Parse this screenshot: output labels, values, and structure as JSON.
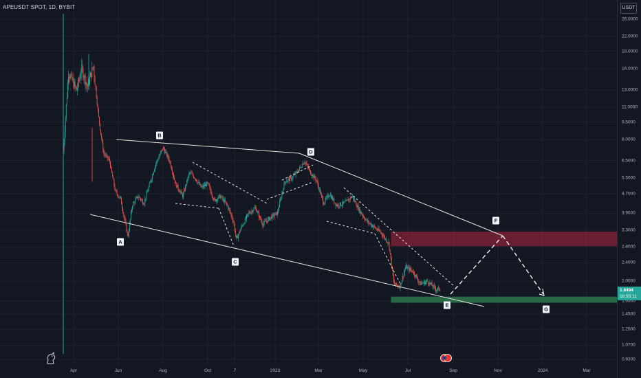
{
  "header": {
    "title": "APEUSDT SPOT, 1D, BYBIT"
  },
  "price_axis": {
    "currency": "USDT"
  },
  "last_price": {
    "value": "1.8494",
    "countdown": "16:55:11"
  },
  "colors": {
    "background": "#131722",
    "bull": "#26a69a",
    "bear": "#ef5350",
    "resistance_zone": "#b2243f",
    "support_zone": "#2e7d4f",
    "drawing": "#e6e6e6"
  },
  "chart_data": {
    "type": "candlestick",
    "title": "APEUSDT SPOT, 1D, BYBIT",
    "y_scale": "log",
    "ylim": [
      0.9,
      27
    ],
    "y_ticks": [
      "26.0000",
      "22.0000",
      "19.0000",
      "16.0000",
      "13.0000",
      "11.0000",
      "9.5000",
      "8.0000",
      "6.5000",
      "5.5000",
      "4.7000",
      "3.9000",
      "3.3000",
      "2.8000",
      "2.4000",
      "2.0000",
      "1.6500",
      "1.4500",
      "1.2500",
      "1.0700",
      "0.9300"
    ],
    "x_ticks": [
      "Apr",
      "Jun",
      "Aug",
      "Oct",
      "7",
      "2023",
      "Mar",
      "May",
      "Jul",
      "Sep",
      "Nov",
      "2024",
      "Mar"
    ],
    "x_range": [
      "2022-03-17",
      "2024-03-31"
    ],
    "price_path": [
      [
        "2022-03-17",
        6.5
      ],
      [
        "2022-03-25",
        15.5
      ],
      [
        "2022-04-05",
        13
      ],
      [
        "2022-04-12",
        16
      ],
      [
        "2022-04-20",
        13.5
      ],
      [
        "2022-04-28",
        16.5
      ],
      [
        "2022-05-05",
        10
      ],
      [
        "2022-05-12",
        7
      ],
      [
        "2022-05-20",
        6.5
      ],
      [
        "2022-05-28",
        4.8
      ],
      [
        "2022-06-04",
        4.5
      ],
      [
        "2022-06-14",
        3.1
      ],
      [
        "2022-06-20",
        4.2
      ],
      [
        "2022-06-28",
        4.6
      ],
      [
        "2022-07-06",
        4.3
      ],
      [
        "2022-07-14",
        5.2
      ],
      [
        "2022-07-22",
        6.3
      ],
      [
        "2022-08-01",
        7.4
      ],
      [
        "2022-08-10",
        6.5
      ],
      [
        "2022-08-18",
        5.2
      ],
      [
        "2022-08-28",
        4.6
      ],
      [
        "2022-09-06",
        5.8
      ],
      [
        "2022-09-14",
        5.5
      ],
      [
        "2022-09-22",
        5.0
      ],
      [
        "2022-10-01",
        5.2
      ],
      [
        "2022-10-10",
        4.4
      ],
      [
        "2022-10-18",
        4.6
      ],
      [
        "2022-10-28",
        4.2
      ],
      [
        "2022-11-05",
        3.6
      ],
      [
        "2022-11-09",
        3.0
      ],
      [
        "2022-11-16",
        3.4
      ],
      [
        "2022-11-26",
        3.9
      ],
      [
        "2022-12-05",
        4.1
      ],
      [
        "2022-12-15",
        3.5
      ],
      [
        "2022-12-24",
        3.7
      ],
      [
        "2023-01-04",
        3.9
      ],
      [
        "2023-01-14",
        5.3
      ],
      [
        "2023-01-24",
        5.5
      ],
      [
        "2023-02-03",
        6.0
      ],
      [
        "2023-02-10",
        6.5
      ],
      [
        "2023-02-18",
        5.8
      ],
      [
        "2023-02-26",
        5.4
      ],
      [
        "2023-03-08",
        4.3
      ],
      [
        "2023-03-16",
        4.7
      ],
      [
        "2023-03-26",
        4.2
      ],
      [
        "2023-04-06",
        4.3
      ],
      [
        "2023-04-16",
        4.6
      ],
      [
        "2023-04-26",
        4.0
      ],
      [
        "2023-05-06",
        3.6
      ],
      [
        "2023-05-16",
        3.4
      ],
      [
        "2023-05-26",
        3.2
      ],
      [
        "2023-06-05",
        2.9
      ],
      [
        "2023-06-12",
        1.95
      ],
      [
        "2023-06-20",
        1.9
      ],
      [
        "2023-06-28",
        2.3
      ],
      [
        "2023-07-08",
        2.2
      ],
      [
        "2023-07-18",
        1.95
      ],
      [
        "2023-07-28",
        2.0
      ],
      [
        "2023-08-08",
        1.85
      ],
      [
        "2023-08-14",
        1.8494
      ]
    ]
  },
  "wave_labels": [
    "A",
    "B",
    "C",
    "D",
    "E",
    "F",
    "G"
  ]
}
